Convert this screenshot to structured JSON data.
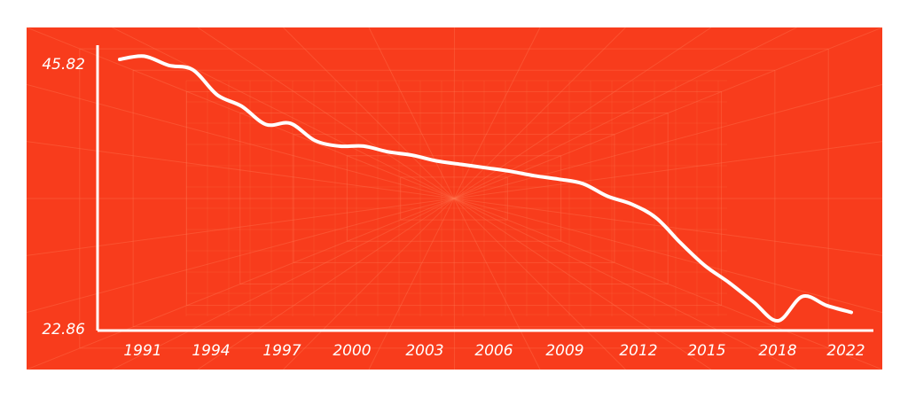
{
  "colors": {
    "background": "#f83c1c",
    "line": "#ffffff",
    "grid": "#ff7a55"
  },
  "chart_data": {
    "type": "line",
    "title": "",
    "xlabel": "",
    "ylabel": "",
    "x": [
      1991,
      1992,
      1993,
      1994,
      1995,
      1996,
      1997,
      1998,
      1999,
      2000,
      2001,
      2002,
      2003,
      2004,
      2005,
      2006,
      2007,
      2008,
      2009,
      2010,
      2011,
      2012,
      2013,
      2014,
      2015,
      2016,
      2017,
      2018,
      2019,
      2020,
      2021
    ],
    "series": [
      {
        "values": [
          45.82,
          46.1,
          45.3,
          44.9,
          42.7,
          41.7,
          40.1,
          40.2,
          38.7,
          38.2,
          38.2,
          37.7,
          37.4,
          36.9,
          36.6,
          36.3,
          36.0,
          35.6,
          35.3,
          34.9,
          33.8,
          33.1,
          31.9,
          29.7,
          27.7,
          26.2,
          24.5,
          22.86,
          25.0,
          24.2,
          23.6
        ]
      }
    ],
    "ytick_labels": [
      "45.82",
      "22.86"
    ],
    "xtick_labels": [
      "1991",
      "1994",
      "1997",
      "2000",
      "2003",
      "2006",
      "2009",
      "2012",
      "2015",
      "2018",
      "2022"
    ],
    "ylim": [
      22.86,
      45.82
    ],
    "grid": true
  }
}
